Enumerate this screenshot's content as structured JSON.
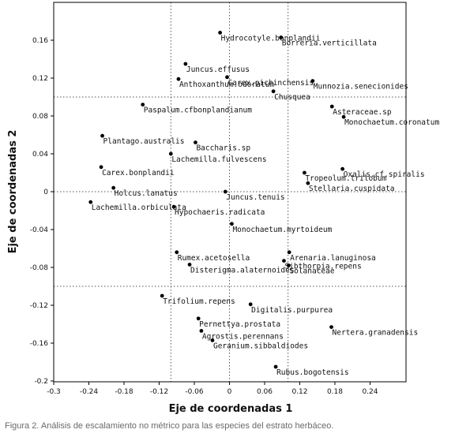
{
  "chart_data": {
    "type": "scatter",
    "xlabel": "Eje de coordenadas 1",
    "ylabel": "Eje de coordenadas 2",
    "xlim": [
      -0.3,
      0.3
    ],
    "ylim": [
      -0.2,
      0.2
    ],
    "x_ticks": [
      -0.3,
      -0.24,
      -0.18,
      -0.12,
      -0.06,
      0,
      0.06,
      0.12,
      0.18,
      0.24
    ],
    "y_ticks": [
      -0.2,
      -0.16,
      -0.12,
      -0.08,
      -0.04,
      0,
      0.04,
      0.08,
      0.12,
      0.16
    ],
    "x_tick_labels": [
      "-0.3",
      "-0.24",
      "-0.18",
      "-0.12",
      "-0.06",
      "0",
      "0.06",
      "0.12",
      "0.18",
      "0.24"
    ],
    "y_tick_labels": [
      "-0.2",
      "-0.16",
      "-0.12",
      "-0.08",
      "-0.04",
      "0",
      "0.04",
      "0.08",
      "0.12",
      "0.16"
    ],
    "dashed_reference_lines": {
      "x": [
        -0.1,
        0,
        0.1
      ],
      "y": [
        -0.1,
        0,
        0.1
      ]
    },
    "points": [
      {
        "label": "Hydrocotyle.bonplandii",
        "x": -0.016,
        "y": 0.168
      },
      {
        "label": "Borreria.verticillata",
        "x": 0.088,
        "y": 0.163
      },
      {
        "label": "Juncus.effusus",
        "x": -0.075,
        "y": 0.135
      },
      {
        "label": "Carex.pichinchensis",
        "x": -0.004,
        "y": 0.121
      },
      {
        "label": "Anthoxanthum.odoratum",
        "x": -0.087,
        "y": 0.119
      },
      {
        "label": "Munnozia.senecionides",
        "x": 0.142,
        "y": 0.117
      },
      {
        "label": "Chusquea",
        "x": 0.075,
        "y": 0.106
      },
      {
        "label": "Asteraceae.sp",
        "x": 0.175,
        "y": 0.09
      },
      {
        "label": "Paspalum.cfbonplandianum",
        "x": -0.148,
        "y": 0.092
      },
      {
        "label": "Monochaetum.coronatum",
        "x": 0.195,
        "y": 0.079
      },
      {
        "label": "Plantago.australis",
        "x": -0.217,
        "y": 0.059
      },
      {
        "label": "Baccharis.sp",
        "x": -0.058,
        "y": 0.052
      },
      {
        "label": "Lachemilla.fulvescens",
        "x": -0.1,
        "y": 0.04
      },
      {
        "label": "Carex.bonplandii",
        "x": -0.219,
        "y": 0.026
      },
      {
        "label": "Oxalis.cf.spiralis",
        "x": 0.193,
        "y": 0.024
      },
      {
        "label": "Tropeolum.trilobum",
        "x": 0.128,
        "y": 0.02
      },
      {
        "label": "Stellaria.cuspidata",
        "x": 0.134,
        "y": 0.009
      },
      {
        "label": "Holcus.lanatus",
        "x": -0.198,
        "y": 0.004
      },
      {
        "label": "Juncus.tenuis",
        "x": -0.007,
        "y": 0.0
      },
      {
        "label": "Lachemilla.orbiculata",
        "x": -0.237,
        "y": -0.011
      },
      {
        "label": "Hypochaeris.radicata",
        "x": -0.095,
        "y": -0.016
      },
      {
        "label": "Monochaetum.myrtoideum",
        "x": 0.004,
        "y": -0.034
      },
      {
        "label": "Rumex.acetosella",
        "x": -0.09,
        "y": -0.064
      },
      {
        "label": "Arenaria.lanuginosa",
        "x": 0.102,
        "y": -0.064
      },
      {
        "label": "Sibthorpia.repens",
        "x": 0.093,
        "y": -0.073
      },
      {
        "label": "Disterigma.alaternoides",
        "x": -0.068,
        "y": -0.077
      },
      {
        "label": "Solanaceae",
        "x": 0.101,
        "y": -0.078
      },
      {
        "label": "Trifolium.repens",
        "x": -0.115,
        "y": -0.11
      },
      {
        "label": "Digitalis.purpurea",
        "x": 0.036,
        "y": -0.119
      },
      {
        "label": "Pernettya.prostata",
        "x": -0.053,
        "y": -0.134
      },
      {
        "label": "Nertera.granadensis",
        "x": 0.174,
        "y": -0.143
      },
      {
        "label": "Agrostis.perennans",
        "x": -0.048,
        "y": -0.147
      },
      {
        "label": "Geranium.sibbaldiodes",
        "x": -0.029,
        "y": -0.157
      },
      {
        "label": "Rubus.bogotensis",
        "x": 0.079,
        "y": -0.185
      }
    ]
  },
  "caption": "Figura 2. Análisis de escalamiento no métrico para las especies del estrato herbáceo."
}
